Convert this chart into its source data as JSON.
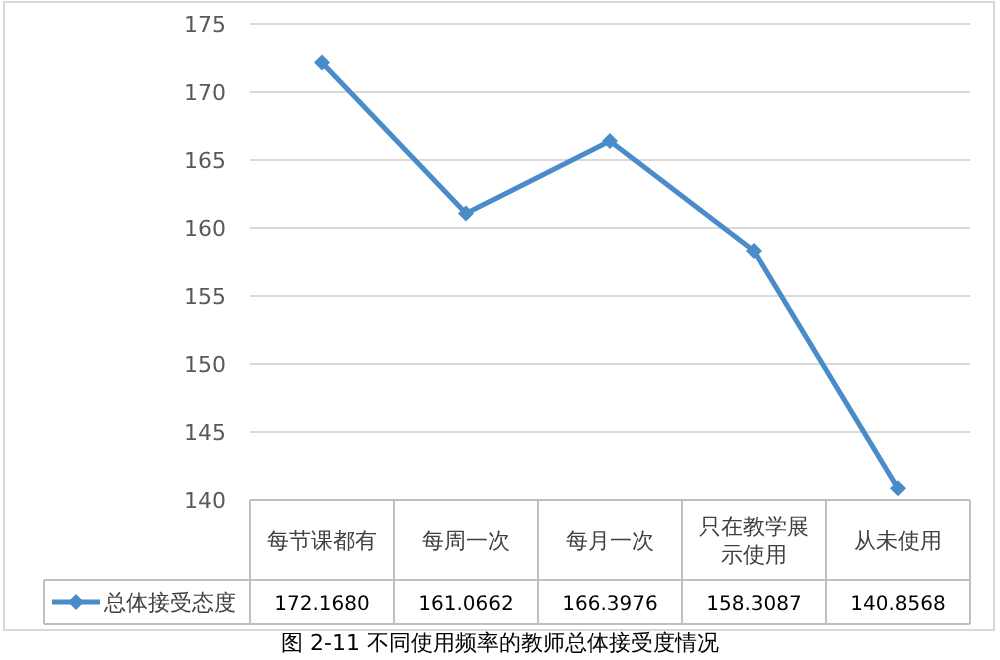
{
  "chart_data": {
    "type": "line",
    "categories": [
      "每节课都有",
      "每周一次",
      "每月一次",
      "只在教学展示使用",
      "从未使用"
    ],
    "series": [
      {
        "name": "总体接受态度",
        "color": "#4a8bc9",
        "values": [
          172.168,
          161.0662,
          166.3976,
          158.3087,
          140.8568
        ],
        "value_labels": [
          "172.1680",
          "161.0662",
          "166.3976",
          "158.3087",
          "140.8568"
        ]
      }
    ],
    "ylim": [
      140,
      175
    ],
    "yticks": [
      140,
      145,
      150,
      155,
      160,
      165,
      170,
      175
    ],
    "grid": "y",
    "marker": "diamond",
    "line_style": "solid",
    "legend": "bottom",
    "annotations": [
      "图 2-11 不同使用频率的教师总体接受度情况"
    ]
  }
}
